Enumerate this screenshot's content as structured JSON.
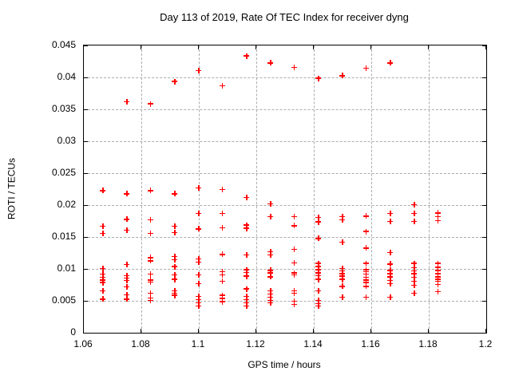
{
  "chart_data": {
    "type": "scatter",
    "title": "Day 113 of 2019, Rate Of TEC Index for receiver dyng",
    "xlabel": "GPS time / hours",
    "ylabel": "ROTI / TECUs",
    "xlim": [
      1.06,
      1.2
    ],
    "ylim": [
      0,
      0.045
    ],
    "xtick_labels": [
      "1.06",
      "1.08",
      "1.1",
      "1.12",
      "1.14",
      "1.16",
      "1.18",
      "1.2"
    ],
    "ytick_labels": [
      "0",
      "0.005",
      "0.01",
      "0.015",
      "0.02",
      "0.025",
      "0.03",
      "0.035",
      "0.04",
      "0.045"
    ],
    "grid": true,
    "legend": "none",
    "marker": "plus",
    "colors": {
      "marker": "#ff0000",
      "grid": "#adadad",
      "axis": "#000000",
      "text": "#000000",
      "background": "#ffffff"
    },
    "series": [
      {
        "name": "ROTI",
        "points": [
          [
            1.0668,
            0.0222
          ],
          [
            1.0668,
            0.0166
          ],
          [
            1.0668,
            0.0155
          ],
          [
            1.0668,
            0.01
          ],
          [
            1.0668,
            0.0091
          ],
          [
            1.0668,
            0.0086
          ],
          [
            1.0668,
            0.0082
          ],
          [
            1.0668,
            0.0078
          ],
          [
            1.0668,
            0.0065
          ],
          [
            1.0668,
            0.0052
          ],
          [
            1.0751,
            0.0361
          ],
          [
            1.0751,
            0.0217
          ],
          [
            1.0751,
            0.0177
          ],
          [
            1.0751,
            0.016
          ],
          [
            1.0751,
            0.0106
          ],
          [
            1.0751,
            0.0089
          ],
          [
            1.0751,
            0.0085
          ],
          [
            1.0751,
            0.0081
          ],
          [
            1.0751,
            0.0071
          ],
          [
            1.0751,
            0.0059
          ],
          [
            1.0751,
            0.0052
          ],
          [
            1.0834,
            0.0358
          ],
          [
            1.0834,
            0.0222
          ],
          [
            1.0834,
            0.0176
          ],
          [
            1.0834,
            0.0155
          ],
          [
            1.0834,
            0.0117
          ],
          [
            1.0834,
            0.0112
          ],
          [
            1.0834,
            0.0091
          ],
          [
            1.0834,
            0.0082
          ],
          [
            1.0834,
            0.0079
          ],
          [
            1.0834,
            0.0061
          ],
          [
            1.0834,
            0.0054
          ],
          [
            1.0834,
            0.005
          ],
          [
            1.0918,
            0.0393
          ],
          [
            1.0918,
            0.0217
          ],
          [
            1.0918,
            0.0166
          ],
          [
            1.0918,
            0.0156
          ],
          [
            1.0918,
            0.0119
          ],
          [
            1.0918,
            0.0114
          ],
          [
            1.0918,
            0.0103
          ],
          [
            1.0918,
            0.009
          ],
          [
            1.0918,
            0.0083
          ],
          [
            1.0918,
            0.0065
          ],
          [
            1.0918,
            0.0061
          ],
          [
            1.0918,
            0.0058
          ],
          [
            1.1001,
            0.041
          ],
          [
            1.1001,
            0.0226
          ],
          [
            1.1001,
            0.0186
          ],
          [
            1.1001,
            0.0162
          ],
          [
            1.1001,
            0.0115
          ],
          [
            1.1001,
            0.011
          ],
          [
            1.1001,
            0.009
          ],
          [
            1.1001,
            0.0076
          ],
          [
            1.1001,
            0.0056
          ],
          [
            1.1001,
            0.0051
          ],
          [
            1.1001,
            0.0046
          ],
          [
            1.1001,
            0.0041
          ],
          [
            1.1084,
            0.0386
          ],
          [
            1.1084,
            0.0224
          ],
          [
            1.1084,
            0.0186
          ],
          [
            1.1084,
            0.0164
          ],
          [
            1.1084,
            0.0122
          ],
          [
            1.1084,
            0.0095
          ],
          [
            1.1084,
            0.009
          ],
          [
            1.1084,
            0.008
          ],
          [
            1.1084,
            0.0058
          ],
          [
            1.1084,
            0.0053
          ],
          [
            1.1084,
            0.0048
          ],
          [
            1.1168,
            0.0433
          ],
          [
            1.1168,
            0.0211
          ],
          [
            1.1168,
            0.0168
          ],
          [
            1.1168,
            0.0163
          ],
          [
            1.1168,
            0.0121
          ],
          [
            1.1168,
            0.0098
          ],
          [
            1.1168,
            0.0094
          ],
          [
            1.1168,
            0.0088
          ],
          [
            1.1168,
            0.0068
          ],
          [
            1.1168,
            0.0056
          ],
          [
            1.1168,
            0.0051
          ],
          [
            1.1168,
            0.0046
          ],
          [
            1.1168,
            0.0041
          ],
          [
            1.1251,
            0.0422
          ],
          [
            1.1251,
            0.0201
          ],
          [
            1.1251,
            0.0181
          ],
          [
            1.1251,
            0.0126
          ],
          [
            1.1251,
            0.0121
          ],
          [
            1.1251,
            0.0097
          ],
          [
            1.1251,
            0.0093
          ],
          [
            1.1251,
            0.0087
          ],
          [
            1.1251,
            0.0065
          ],
          [
            1.1251,
            0.006
          ],
          [
            1.1251,
            0.0055
          ],
          [
            1.1251,
            0.005
          ],
          [
            1.1251,
            0.0046
          ],
          [
            1.1334,
            0.0415
          ],
          [
            1.1334,
            0.0181
          ],
          [
            1.1334,
            0.0167
          ],
          [
            1.1334,
            0.013
          ],
          [
            1.1334,
            0.0109
          ],
          [
            1.1334,
            0.0093
          ],
          [
            1.1334,
            0.009
          ],
          [
            1.1334,
            0.0065
          ],
          [
            1.1334,
            0.0061
          ],
          [
            1.1334,
            0.0049
          ],
          [
            1.1334,
            0.0044
          ],
          [
            1.1418,
            0.0398
          ],
          [
            1.1418,
            0.018
          ],
          [
            1.1418,
            0.0173
          ],
          [
            1.1418,
            0.0147
          ],
          [
            1.1418,
            0.0108
          ],
          [
            1.1418,
            0.0103
          ],
          [
            1.1418,
            0.0098
          ],
          [
            1.1418,
            0.0093
          ],
          [
            1.1418,
            0.0089
          ],
          [
            1.1418,
            0.0083
          ],
          [
            1.1418,
            0.0065
          ],
          [
            1.1418,
            0.005
          ],
          [
            1.1418,
            0.0045
          ],
          [
            1.1418,
            0.0041
          ],
          [
            1.1501,
            0.0402
          ],
          [
            1.1501,
            0.0181
          ],
          [
            1.1501,
            0.0176
          ],
          [
            1.1501,
            0.0141
          ],
          [
            1.1501,
            0.01
          ],
          [
            1.1501,
            0.0096
          ],
          [
            1.1501,
            0.0092
          ],
          [
            1.1501,
            0.0088
          ],
          [
            1.1501,
            0.0083
          ],
          [
            1.1501,
            0.0072
          ],
          [
            1.1501,
            0.0055
          ],
          [
            1.1584,
            0.0414
          ],
          [
            1.1584,
            0.0182
          ],
          [
            1.1584,
            0.0158
          ],
          [
            1.1584,
            0.0132
          ],
          [
            1.1584,
            0.0108
          ],
          [
            1.1584,
            0.0098
          ],
          [
            1.1584,
            0.0095
          ],
          [
            1.1584,
            0.0091
          ],
          [
            1.1584,
            0.0086
          ],
          [
            1.1584,
            0.0082
          ],
          [
            1.1584,
            0.0078
          ],
          [
            1.1584,
            0.0072
          ],
          [
            1.1584,
            0.0055
          ],
          [
            1.1668,
            0.0422
          ],
          [
            1.1668,
            0.0186
          ],
          [
            1.1668,
            0.0174
          ],
          [
            1.1668,
            0.0125
          ],
          [
            1.1668,
            0.0107
          ],
          [
            1.1668,
            0.0097
          ],
          [
            1.1668,
            0.0092
          ],
          [
            1.1668,
            0.0087
          ],
          [
            1.1668,
            0.0081
          ],
          [
            1.1668,
            0.0076
          ],
          [
            1.1668,
            0.0055
          ],
          [
            1.1751,
            0.02
          ],
          [
            1.1751,
            0.0186
          ],
          [
            1.1751,
            0.0174
          ],
          [
            1.1751,
            0.0108
          ],
          [
            1.1751,
            0.0101
          ],
          [
            1.1751,
            0.0096
          ],
          [
            1.1751,
            0.0092
          ],
          [
            1.1751,
            0.0086
          ],
          [
            1.1751,
            0.008
          ],
          [
            1.1751,
            0.0074
          ],
          [
            1.1751,
            0.0061
          ],
          [
            1.1834,
            0.0187
          ],
          [
            1.1834,
            0.0181
          ],
          [
            1.1834,
            0.0175
          ],
          [
            1.1834,
            0.0108
          ],
          [
            1.1834,
            0.0102
          ],
          [
            1.1834,
            0.0097
          ],
          [
            1.1834,
            0.0092
          ],
          [
            1.1834,
            0.0087
          ],
          [
            1.1834,
            0.0083
          ],
          [
            1.1834,
            0.008
          ],
          [
            1.1834,
            0.0075
          ],
          [
            1.1834,
            0.0064
          ]
        ]
      }
    ]
  }
}
